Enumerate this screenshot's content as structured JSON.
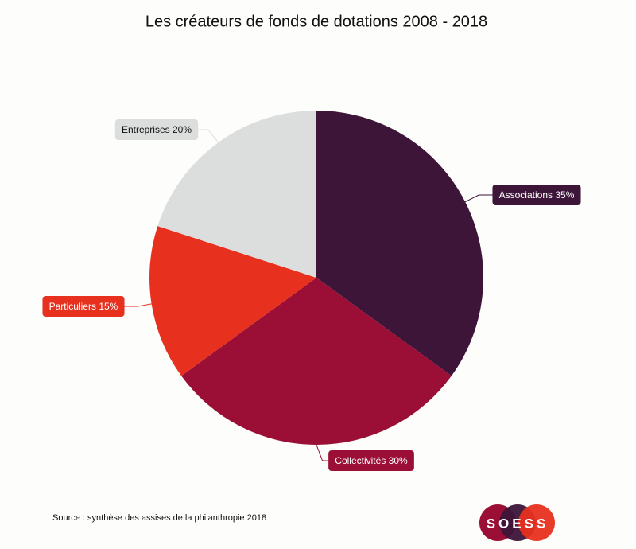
{
  "chart_data": {
    "type": "pie",
    "title": "Les créateurs de fonds de dotations 2008 - 2018",
    "categories": [
      "Associations",
      "Collectivités",
      "Particuliers",
      "Entreprises"
    ],
    "values": [
      35,
      30,
      15,
      20
    ],
    "value_labels": [
      "35%",
      "30%",
      "15%",
      "20%"
    ],
    "colors": [
      "#3d1539",
      "#9b0e35",
      "#e8301f",
      "#dcdddd"
    ],
    "source": "Source : synthèse des assises de la philanthropie 2018",
    "logo": "SOESS"
  }
}
